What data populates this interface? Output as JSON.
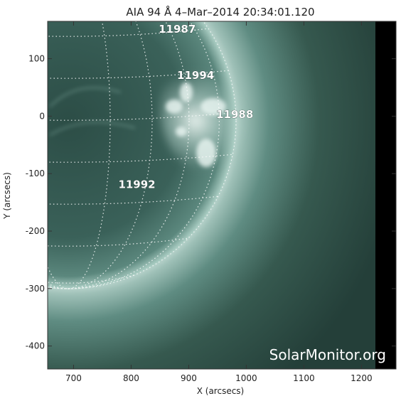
{
  "title": "AIA 94 Å   4–Mar–2014 20:34:01.120",
  "x_axis": {
    "label": "X (arcsecs)",
    "ticks": [
      "700",
      "800",
      "900",
      "1000",
      "1100",
      "1200"
    ],
    "tick_values": [
      700,
      800,
      900,
      1000,
      1100,
      1200
    ],
    "range": [
      655,
      1260
    ]
  },
  "y_axis": {
    "label": "Y (arcsecs)",
    "ticks": [
      "100",
      "0",
      "-100",
      "-200",
      "-300",
      "-400"
    ],
    "tick_values": [
      100,
      0,
      -100,
      -200,
      -300,
      -400
    ],
    "range": [
      -440,
      165
    ]
  },
  "regions": [
    {
      "label": "11987",
      "x": 880,
      "y": 145
    },
    {
      "label": "11994",
      "x": 912,
      "y": 65
    },
    {
      "label": "11988",
      "x": 980,
      "y": -3
    },
    {
      "label": "11992",
      "x": 810,
      "y": -125
    }
  ],
  "watermark": "SolarMonitor.org",
  "colors": {
    "disk": "#3f6a61",
    "limb": "#d6e9e3",
    "corona_far": "#243f39",
    "background": "#000000"
  }
}
